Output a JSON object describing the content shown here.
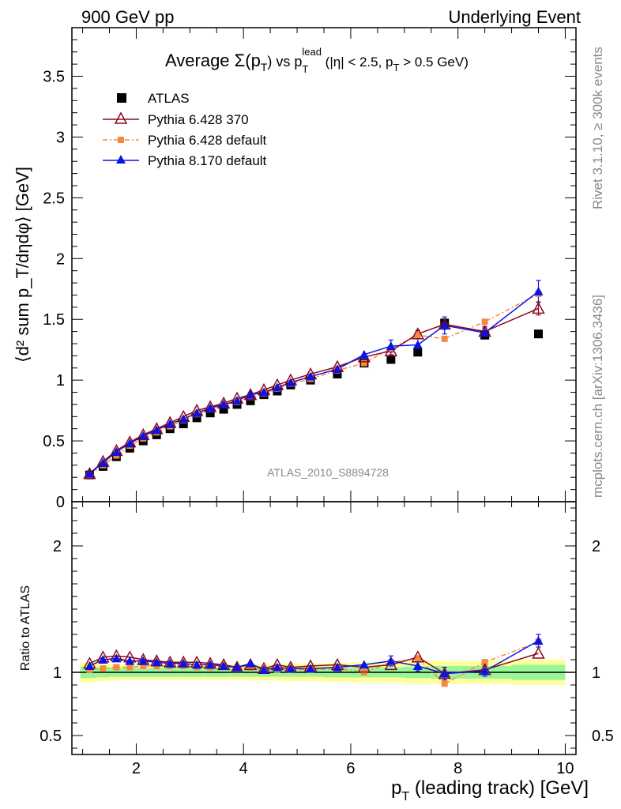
{
  "header": {
    "left": "900 GeV pp",
    "right": "Underlying Event"
  },
  "side": {
    "rivet": "Rivet 3.1.10, ≥ 300k events",
    "mcplots": "mcplots.cern.ch [arXiv:1306.3436]"
  },
  "watermark": "ATLAS_2010_S8894728",
  "colors": {
    "atlas": "#000000",
    "py6_370": "#8b0a1e",
    "py6_default": "#f58a3c",
    "py8": "#0a14e6",
    "band_yellow": "#ffff99",
    "band_green": "#98f598"
  },
  "chart_data": [
    {
      "type": "scatter",
      "title_main": "Average Σ(p",
      "title_sub_T": "T",
      "title_mid": ") vs p",
      "title_sup_lead": "lead",
      "title_cuts_a": " (|η| < 2.5, p",
      "title_cuts_b": " > 0.5 GeV)",
      "ylabel": "⟨d² sum p_T/dηdφ⟩ [GeV]",
      "xlim": [
        0.8,
        10.2
      ],
      "ylim": [
        0,
        3.9
      ],
      "xticks": [
        2,
        4,
        6,
        8,
        10
      ],
      "yticks": [
        0,
        0.5,
        1,
        1.5,
        2,
        2.5,
        3,
        3.5
      ],
      "legend_position": "top-left",
      "x": [
        1.13,
        1.38,
        1.63,
        1.88,
        2.13,
        2.38,
        2.63,
        2.88,
        3.13,
        3.38,
        3.63,
        3.88,
        4.13,
        4.38,
        4.63,
        4.88,
        5.25,
        5.75,
        6.25,
        6.75,
        7.25,
        7.75,
        8.5,
        9.5
      ],
      "series": [
        {
          "name": "ATLAS",
          "marker": "square",
          "values": [
            0.22,
            0.29,
            0.37,
            0.44,
            0.5,
            0.55,
            0.6,
            0.64,
            0.69,
            0.73,
            0.76,
            0.8,
            0.83,
            0.88,
            0.91,
            0.96,
            1.0,
            1.05,
            1.14,
            1.17,
            1.23,
            1.47,
            1.37,
            1.38
          ]
        },
        {
          "name": "Pythia 6.428 370",
          "marker": "open-triangle",
          "values": [
            0.23,
            0.33,
            0.42,
            0.49,
            0.55,
            0.6,
            0.65,
            0.7,
            0.75,
            0.78,
            0.81,
            0.85,
            0.88,
            0.92,
            0.96,
            1.0,
            1.05,
            1.11,
            1.19,
            1.24,
            1.38,
            1.46,
            1.4,
            1.59
          ]
        },
        {
          "name": "Pythia 6.428 default",
          "marker": "dot",
          "values": [
            0.22,
            0.3,
            0.38,
            0.46,
            0.52,
            0.57,
            0.62,
            0.67,
            0.72,
            0.76,
            0.8,
            0.82,
            0.86,
            0.89,
            0.93,
            0.97,
            1.01,
            1.08,
            1.14,
            1.26,
            1.37,
            1.34,
            1.48,
            1.71
          ]
        },
        {
          "name": "Pythia 8.170 default",
          "marker": "triangle",
          "values": [
            0.23,
            0.32,
            0.41,
            0.48,
            0.54,
            0.59,
            0.64,
            0.68,
            0.73,
            0.77,
            0.8,
            0.83,
            0.88,
            0.9,
            0.94,
            0.98,
            1.03,
            1.09,
            1.21,
            1.28,
            1.29,
            1.45,
            1.39,
            1.73
          ]
        }
      ]
    },
    {
      "type": "scatter",
      "ylabel": "Ratio to ATLAS",
      "xlabel": "p_T (leading track) [GeV]",
      "xlim": [
        0.8,
        10.2
      ],
      "ylim": [
        0.35,
        2.35
      ],
      "yticks": [
        0.5,
        1,
        2
      ],
      "band_edges": [
        1.0,
        1.25,
        1.5,
        1.75,
        2.0,
        2.25,
        2.5,
        2.75,
        3.0,
        3.25,
        3.5,
        3.75,
        4.0,
        4.25,
        4.5,
        4.75,
        5.0,
        5.5,
        6.0,
        6.5,
        7.0,
        7.5,
        8.0,
        9.0,
        10.0
      ],
      "band_yellow_half": [
        0.08,
        0.07,
        0.065,
        0.06,
        0.06,
        0.06,
        0.06,
        0.06,
        0.06,
        0.06,
        0.06,
        0.06,
        0.065,
        0.065,
        0.065,
        0.07,
        0.07,
        0.075,
        0.08,
        0.08,
        0.09,
        0.09,
        0.09,
        0.1
      ],
      "band_green_half": [
        0.045,
        0.04,
        0.035,
        0.035,
        0.035,
        0.035,
        0.035,
        0.035,
        0.035,
        0.035,
        0.035,
        0.035,
        0.035,
        0.035,
        0.035,
        0.035,
        0.035,
        0.04,
        0.04,
        0.04,
        0.045,
        0.05,
        0.05,
        0.06
      ],
      "series": [
        {
          "name": "Pythia 6.428 370",
          "values": [
            1.07,
            1.12,
            1.13,
            1.12,
            1.1,
            1.09,
            1.08,
            1.08,
            1.08,
            1.07,
            1.06,
            1.04,
            1.06,
            1.03,
            1.06,
            1.04,
            1.05,
            1.06,
            1.04,
            1.06,
            1.12,
            0.99,
            1.02,
            1.15
          ]
        },
        {
          "name": "Pythia 6.428 default",
          "values": [
            1.02,
            1.03,
            1.04,
            1.04,
            1.05,
            1.05,
            1.05,
            1.05,
            1.04,
            1.04,
            1.05,
            1.03,
            1.04,
            1.02,
            1.02,
            1.02,
            1.02,
            1.03,
            1.0,
            1.08,
            1.11,
            0.91,
            1.08,
            1.24
          ]
        },
        {
          "name": "Pythia 8.170 default",
          "values": [
            1.05,
            1.1,
            1.11,
            1.09,
            1.09,
            1.08,
            1.07,
            1.07,
            1.06,
            1.06,
            1.05,
            1.04,
            1.07,
            1.02,
            1.04,
            1.03,
            1.03,
            1.04,
            1.06,
            1.09,
            1.05,
            0.99,
            1.01,
            1.25
          ]
        }
      ]
    }
  ],
  "legend_labels": [
    "ATLAS",
    "Pythia 6.428 370",
    "Pythia 6.428 default",
    "Pythia 8.170 default"
  ],
  "tick_labels_main": [
    "0",
    "0.5",
    "1",
    "1.5",
    "2",
    "2.5",
    "3",
    "3.5"
  ],
  "tick_labels_ratio": [
    "0.5",
    "1",
    "2"
  ],
  "tick_labels_x": [
    "2",
    "4",
    "6",
    "8",
    "10"
  ]
}
